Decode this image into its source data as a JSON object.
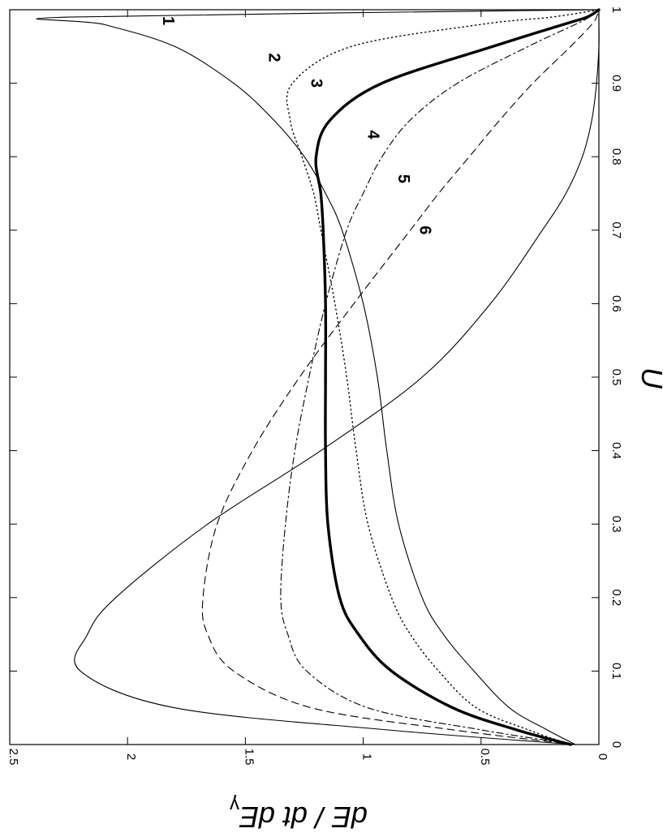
{
  "chart_data": {
    "type": "line",
    "rotation": "rotated 90 degrees clockwise",
    "xlabel": "U",
    "ylabel": "dE / dt dE",
    "ylabel_subscript": "γ",
    "xlim": [
      0,
      1
    ],
    "ylim": [
      0,
      2.5
    ],
    "xticks": [
      "0",
      "0.1",
      "0.2",
      "0.3",
      "0.4",
      "0.5",
      "0.6",
      "0.7",
      "0.8",
      "0.9",
      "1"
    ],
    "yticks": [
      "0",
      "0.5",
      "1",
      "1.5",
      "2",
      "2.5"
    ],
    "grid": false,
    "legend": "none (curves labeled inline)",
    "x": [
      0,
      0.02,
      0.05,
      0.1,
      0.15,
      0.2,
      0.3,
      0.4,
      0.5,
      0.6,
      0.7,
      0.75,
      0.8,
      0.85,
      0.9,
      0.95,
      0.98,
      0.99,
      1.0
    ],
    "series": [
      {
        "name": "1",
        "style": "solid-thin",
        "label_at": [
          0.985,
          1.85
        ],
        "values": [
          0.1,
          0.22,
          0.38,
          0.53,
          0.66,
          0.75,
          0.85,
          0.9,
          0.94,
          1.0,
          1.09,
          1.16,
          1.25,
          1.38,
          1.55,
          1.8,
          2.1,
          2.25,
          0
        ]
      },
      {
        "name": "2",
        "style": "dotted",
        "label_at": [
          0.935,
          1.4
        ],
        "values": [
          0.12,
          0.3,
          0.52,
          0.68,
          0.8,
          0.88,
          0.98,
          1.03,
          1.07,
          1.12,
          1.18,
          1.21,
          1.26,
          1.31,
          1.3,
          1.05,
          0.5,
          0.2,
          0
        ]
      },
      {
        "name": "3",
        "style": "solid-thick",
        "label_at": [
          0.9,
          1.22
        ],
        "values": [
          0.12,
          0.35,
          0.62,
          0.88,
          1.02,
          1.1,
          1.15,
          1.16,
          1.16,
          1.16,
          1.17,
          1.18,
          1.2,
          1.14,
          0.92,
          0.45,
          0.15,
          0.05,
          0
        ]
      },
      {
        "name": "4",
        "style": "dash-dot",
        "label_at": [
          0.83,
          0.98
        ],
        "values": [
          0.1,
          0.5,
          0.98,
          1.24,
          1.32,
          1.35,
          1.33,
          1.29,
          1.23,
          1.16,
          1.07,
          1.0,
          0.92,
          0.8,
          0.6,
          0.3,
          0.1,
          0.04,
          0
        ]
      },
      {
        "name": "5",
        "style": "dashed",
        "label_at": [
          0.77,
          0.85
        ],
        "values": [
          0.1,
          0.62,
          1.22,
          1.55,
          1.66,
          1.68,
          1.62,
          1.47,
          1.27,
          1.04,
          0.8,
          0.68,
          0.55,
          0.42,
          0.28,
          0.12,
          0.03,
          0.01,
          0
        ]
      },
      {
        "name": "6",
        "style": "solid-thin",
        "label_at": [
          0.7,
          0.76
        ],
        "values": [
          0.1,
          0.9,
          1.8,
          2.2,
          2.17,
          2.05,
          1.66,
          1.18,
          0.75,
          0.46,
          0.24,
          0.14,
          0.07,
          0.03,
          0.01,
          0.0,
          0.0,
          0.0,
          0
        ]
      }
    ]
  }
}
